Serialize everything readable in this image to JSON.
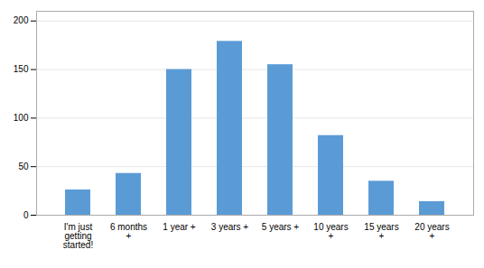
{
  "chart_data": {
    "type": "bar",
    "categories": [
      "I'm just\ngetting\nstarted!",
      "6 months\n+",
      "1 year +",
      "3 years +",
      "5 years +",
      "10 years\n+",
      "15 years\n+",
      "20 years\n+"
    ],
    "values": [
      26,
      43,
      150,
      179,
      155,
      82,
      35,
      14
    ],
    "color": "#5b9bd5",
    "ylim": [
      0,
      210
    ],
    "yticks": [
      0,
      50,
      100,
      150,
      200
    ],
    "grid": true
  }
}
